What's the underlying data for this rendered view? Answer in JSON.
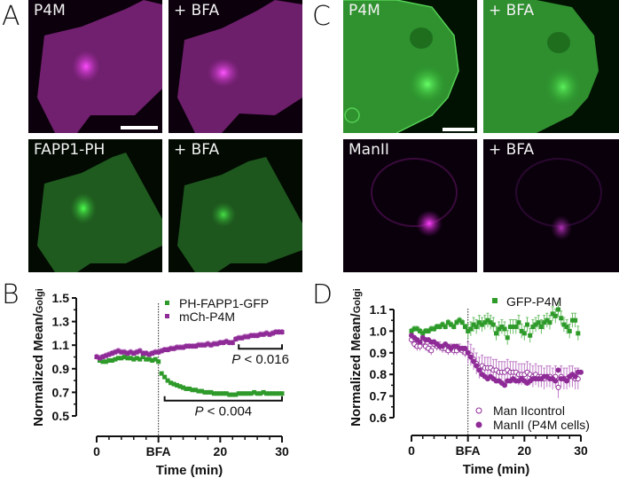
{
  "figure": {
    "panels": {
      "A": {
        "letter": "A",
        "images": [
          {
            "label": "P4M",
            "channel": "magenta",
            "has_scalebar": true
          },
          {
            "label": "+ BFA",
            "channel": "magenta",
            "has_scalebar": false
          },
          {
            "label": "FAPP1-PH",
            "channel": "green",
            "has_scalebar": false
          },
          {
            "label": "+ BFA",
            "channel": "green",
            "has_scalebar": false
          }
        ]
      },
      "C": {
        "letter": "C",
        "images": [
          {
            "label": "P4M",
            "channel": "green",
            "has_scalebar": true
          },
          {
            "label": "+ BFA",
            "channel": "green",
            "has_scalebar": false
          },
          {
            "label": "ManII",
            "channel": "magenta",
            "has_scalebar": false
          },
          {
            "label": "+ BFA",
            "channel": "magenta",
            "has_scalebar": false
          }
        ]
      },
      "B": {
        "letter": "B"
      },
      "D": {
        "letter": "D"
      }
    },
    "colors": {
      "green": "#2e9a2a",
      "magenta": "#8e2b96",
      "magenta_light": "#c07cc8",
      "green_light": "#7cc078",
      "axis": "#111111"
    }
  },
  "chart_data": [
    {
      "panel": "B",
      "type": "scatter",
      "title": "",
      "xlabel": "Time (min)",
      "ylabel": "Normalized Mean/Golgi",
      "ylabel_main": "Normalized  Mean/",
      "ylabel_sub": "Golgi",
      "xlim": [
        0,
        30
      ],
      "ylim": [
        0.5,
        1.5
      ],
      "x_ticks": [
        {
          "value": 0,
          "label": "0"
        },
        {
          "value": 10,
          "label": "BFA"
        },
        {
          "value": 20,
          "label": "20"
        },
        {
          "value": 30,
          "label": "30"
        }
      ],
      "y_ticks": [
        "1.5",
        "1.3",
        "1.1",
        "0.9",
        "0.7",
        "0.5"
      ],
      "y_tick_values": [
        1.5,
        1.3,
        1.1,
        0.9,
        0.7,
        0.5
      ],
      "bfa_time": 10,
      "legend_position": "top-right",
      "series": [
        {
          "name": "PH-FAPP1-GFP",
          "marker": "square",
          "color": "#2e9a2a",
          "x": [
            0,
            0.5,
            1,
            1.5,
            2,
            2.5,
            3,
            3.5,
            4,
            4.5,
            5,
            5.5,
            6,
            6.5,
            7,
            7.5,
            8,
            8.5,
            9,
            9.5,
            10,
            10.5,
            11,
            11.5,
            12,
            12.5,
            13,
            13.5,
            14,
            14.5,
            15,
            15.5,
            16,
            16.5,
            17,
            17.5,
            18,
            18.5,
            19,
            19.5,
            20,
            20.5,
            21,
            21.5,
            22,
            22.5,
            23,
            23.5,
            24,
            24.5,
            25,
            25.5,
            26,
            26.5,
            27,
            27.5,
            28,
            28.5,
            29,
            29.5,
            30
          ],
          "y": [
            1.0,
            0.97,
            0.96,
            0.96,
            0.97,
            0.97,
            0.98,
            0.99,
            0.99,
            1.0,
            0.99,
            0.99,
            0.98,
            0.99,
            0.98,
            1.0,
            0.98,
            0.98,
            0.97,
            0.98,
            0.96,
            0.86,
            0.83,
            0.8,
            0.78,
            0.77,
            0.76,
            0.75,
            0.74,
            0.73,
            0.73,
            0.72,
            0.72,
            0.71,
            0.71,
            0.7,
            0.7,
            0.7,
            0.69,
            0.69,
            0.69,
            0.69,
            0.69,
            0.68,
            0.68,
            0.68,
            0.69,
            0.69,
            0.69,
            0.69,
            0.69,
            0.7,
            0.69,
            0.69,
            0.7,
            0.69,
            0.69,
            0.69,
            0.69,
            0.69,
            0.69
          ]
        },
        {
          "name": "mCh-P4M",
          "marker": "square",
          "color": "#8e2b96",
          "x": [
            0,
            0.5,
            1,
            1.5,
            2,
            2.5,
            3,
            3.5,
            4,
            4.5,
            5,
            5.5,
            6,
            6.5,
            7,
            7.5,
            8,
            8.5,
            9,
            9.5,
            10,
            10.5,
            11,
            11.5,
            12,
            12.5,
            13,
            13.5,
            14,
            14.5,
            15,
            15.5,
            16,
            16.5,
            17,
            17.5,
            18,
            18.5,
            19,
            19.5,
            20,
            20.5,
            21,
            21.5,
            22,
            22.5,
            23,
            23.5,
            24,
            24.5,
            25,
            25.5,
            26,
            26.5,
            27,
            27.5,
            28,
            28.5,
            29,
            29.5,
            30
          ],
          "y": [
            1.0,
            0.99,
            1.0,
            1.01,
            1.02,
            1.03,
            1.04,
            1.05,
            1.04,
            1.04,
            1.03,
            1.04,
            1.03,
            1.04,
            1.05,
            1.03,
            1.03,
            1.02,
            1.03,
            1.04,
            1.04,
            1.05,
            1.06,
            1.06,
            1.07,
            1.07,
            1.08,
            1.08,
            1.08,
            1.09,
            1.09,
            1.09,
            1.09,
            1.1,
            1.1,
            1.1,
            1.11,
            1.1,
            1.11,
            1.11,
            1.12,
            1.12,
            1.13,
            1.12,
            1.12,
            1.15,
            1.16,
            1.16,
            1.17,
            1.17,
            1.18,
            1.18,
            1.18,
            1.19,
            1.19,
            1.2,
            1.19,
            1.2,
            1.21,
            1.21,
            1.21
          ]
        }
      ],
      "annotations": [
        {
          "text": "P < 0.016",
          "italic_part": "P",
          "rest": " < 0.016",
          "bracket_x": [
            23,
            30
          ],
          "bracket_y": 1.07
        },
        {
          "text": "P < 0.004",
          "italic_part": "P",
          "rest": " < 0.004",
          "bracket_x": [
            11,
            30
          ],
          "bracket_y": 0.63
        }
      ]
    },
    {
      "panel": "D",
      "type": "scatter",
      "title": "",
      "xlabel": "Time (min)",
      "ylabel": "Normalized Mean/Golgi",
      "ylabel_main": "Normalized  Mean/",
      "ylabel_sub": "Golgi",
      "xlim": [
        0,
        30
      ],
      "ylim": [
        0.6,
        1.1
      ],
      "x_ticks": [
        {
          "value": 0,
          "label": "0"
        },
        {
          "value": 10,
          "label": "BFA"
        },
        {
          "value": 20,
          "label": "20"
        },
        {
          "value": 30,
          "label": "30"
        }
      ],
      "y_ticks": [
        "1.1",
        "1.0",
        "0.9",
        "0.8",
        "0.7",
        "0.6"
      ],
      "y_tick_values": [
        1.1,
        1.0,
        0.9,
        0.8,
        0.7,
        0.6
      ],
      "bfa_time": 10,
      "legend_position": "top (GFP-P4M), bottom-right (ManII)",
      "series": [
        {
          "name": "GFP-P4M",
          "marker": "square-filled",
          "color": "#2e9a2a",
          "x": [
            0,
            0.5,
            1,
            1.5,
            2,
            2.5,
            3,
            3.5,
            4,
            4.5,
            5,
            5.5,
            6,
            6.5,
            7,
            7.5,
            8,
            8.5,
            9,
            9.5,
            10,
            10.5,
            11,
            11.5,
            12,
            12.5,
            13,
            13.5,
            14,
            14.5,
            15,
            15.5,
            16,
            16.5,
            17,
            17.5,
            18,
            18.5,
            19,
            19.5,
            20,
            20.5,
            21,
            21.5,
            22,
            22.5,
            23,
            23.5,
            24,
            24.5,
            25,
            25.5,
            26,
            26.5,
            27,
            27.5,
            28,
            28.5,
            29,
            29.5
          ],
          "y": [
            1.0,
            1.01,
            1.01,
            1.0,
            0.99,
            1.0,
            1.0,
            1.01,
            1.01,
            1.02,
            1.02,
            1.03,
            1.02,
            1.04,
            1.03,
            1.02,
            1.04,
            1.05,
            1.04,
            1.02,
            1.0,
            1.01,
            1.03,
            1.02,
            1.04,
            1.03,
            1.04,
            1.05,
            1.04,
            1.03,
            0.99,
            1.01,
            1.02,
            1.01,
            0.97,
            1.02,
            1.02,
            1.02,
            1.04,
            1.0,
            0.99,
            1.03,
            0.98,
            1.02,
            1.03,
            1.04,
            1.02,
            1.04,
            1.05,
            1.04,
            1.08,
            1.07,
            1.1,
            1.06,
            1.03,
            1.02,
            1.0,
            1.05,
            1.05,
            0.99
          ]
        },
        {
          "name": "Man IIcontrol",
          "marker": "circle-open",
          "color": "#8e2b96",
          "x": [
            0,
            0.5,
            1,
            1.5,
            2,
            2.5,
            3,
            3.5,
            4,
            4.5,
            5,
            5.5,
            6,
            6.5,
            7,
            7.5,
            8,
            8.5,
            9,
            9.5,
            10,
            10.5,
            11,
            11.5,
            12,
            12.5,
            13,
            13.5,
            14,
            14.5,
            15,
            15.5,
            16,
            16.5,
            17,
            17.5,
            18,
            18.5,
            19,
            19.5,
            20,
            20.5,
            21,
            21.5,
            22,
            22.5,
            23,
            23.5,
            24,
            24.5,
            25,
            25.5,
            26,
            26.5,
            27,
            27.5,
            28,
            28.5,
            29,
            29.5
          ],
          "y": [
            0.96,
            0.94,
            0.93,
            0.93,
            0.95,
            0.93,
            0.92,
            0.91,
            0.94,
            0.93,
            0.93,
            0.92,
            0.92,
            0.91,
            0.92,
            0.91,
            0.91,
            0.92,
            0.91,
            0.9,
            0.9,
            0.89,
            0.87,
            0.85,
            0.83,
            0.84,
            0.83,
            0.83,
            0.83,
            0.82,
            0.82,
            0.81,
            0.81,
            0.81,
            0.82,
            0.81,
            0.81,
            0.81,
            0.8,
            0.8,
            0.8,
            0.81,
            0.8,
            0.79,
            0.8,
            0.79,
            0.79,
            0.78,
            0.79,
            0.79,
            0.78,
            0.79,
            0.74,
            0.79,
            0.78,
            0.78,
            0.79,
            0.79,
            0.78,
            0.78
          ]
        },
        {
          "name": "ManII (P4M cells)",
          "marker": "circle-filled",
          "color": "#8e2b96",
          "x": [
            0,
            0.5,
            1,
            1.5,
            2,
            2.5,
            3,
            3.5,
            4,
            4.5,
            5,
            5.5,
            6,
            6.5,
            7,
            7.5,
            8,
            8.5,
            9,
            9.5,
            10,
            10.5,
            11,
            11.5,
            12,
            12.5,
            13,
            13.5,
            14,
            14.5,
            15,
            15.5,
            16,
            16.5,
            17,
            17.5,
            18,
            18.5,
            19,
            19.5,
            20,
            20.5,
            21,
            21.5,
            22,
            22.5,
            23,
            23.5,
            24,
            24.5,
            25,
            25.5,
            26,
            26.5,
            27,
            27.5,
            28,
            28.5,
            29,
            29.5,
            30
          ],
          "y": [
            0.98,
            0.97,
            0.96,
            0.95,
            0.97,
            0.96,
            0.96,
            0.95,
            0.95,
            0.94,
            0.93,
            0.93,
            0.94,
            0.93,
            0.92,
            0.93,
            0.93,
            0.92,
            0.92,
            0.92,
            0.9,
            0.88,
            0.86,
            0.84,
            0.82,
            0.8,
            0.79,
            0.78,
            0.79,
            0.78,
            0.77,
            0.77,
            0.76,
            0.75,
            0.77,
            0.77,
            0.78,
            0.77,
            0.77,
            0.78,
            0.77,
            0.76,
            0.77,
            0.78,
            0.78,
            0.78,
            0.78,
            0.79,
            0.79,
            0.78,
            0.78,
            0.77,
            0.82,
            0.78,
            0.78,
            0.77,
            0.79,
            0.8,
            0.79,
            0.81,
            0.81
          ]
        }
      ]
    }
  ]
}
